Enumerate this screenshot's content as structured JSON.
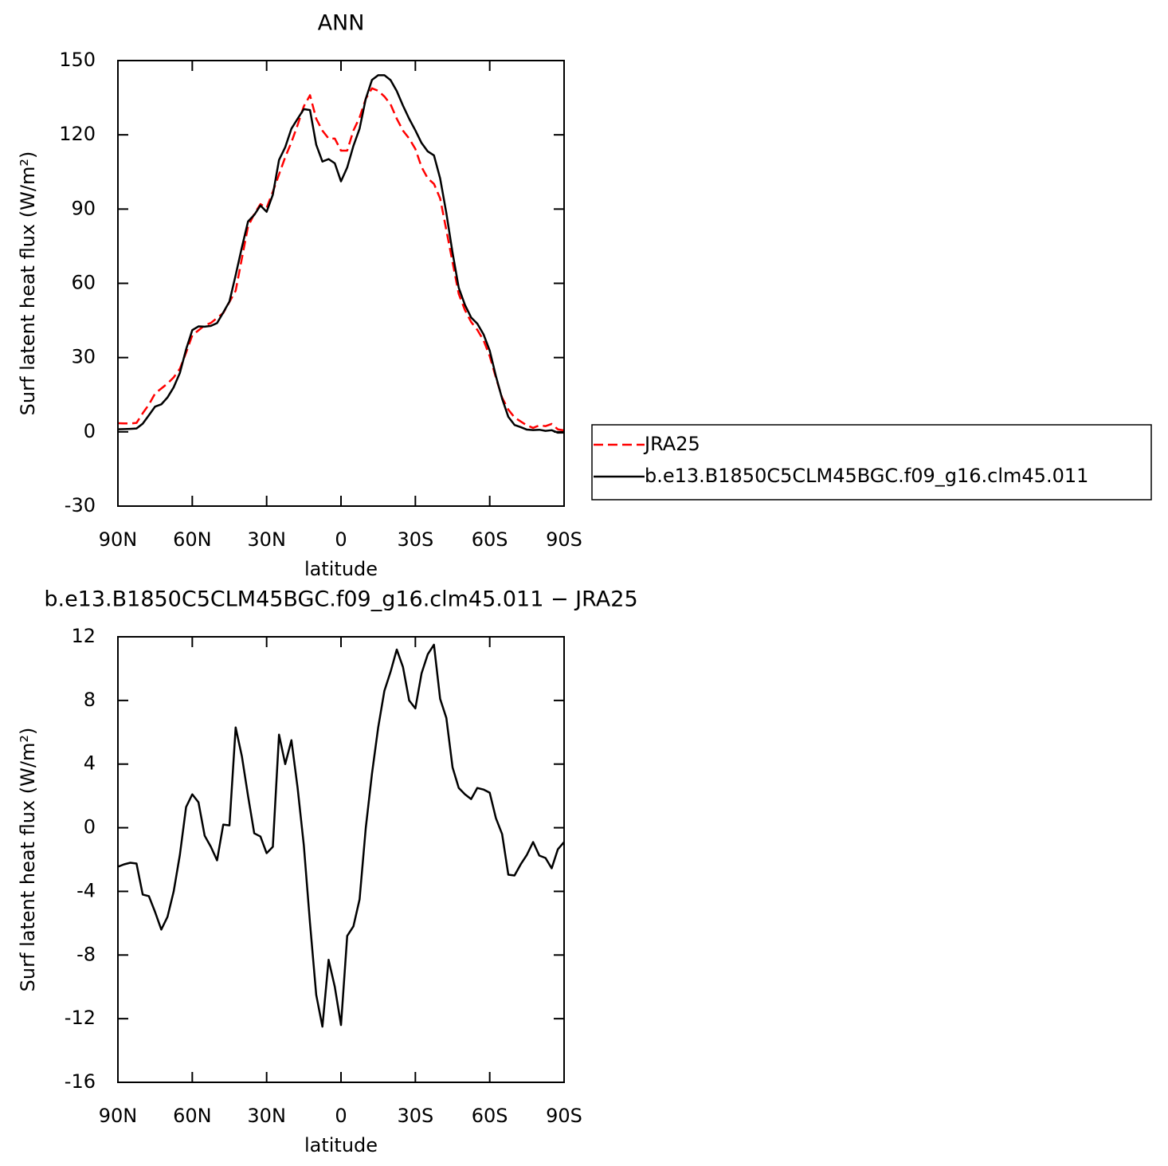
{
  "chart_data": [
    {
      "type": "line",
      "title": "ANN",
      "xlabel": "latitude",
      "ylabel": "Surf latent heat flux (W/m²)",
      "x": [
        90,
        87.5,
        85,
        82.5,
        80,
        77.5,
        75,
        72.5,
        70,
        67.5,
        65,
        62.5,
        60,
        57.5,
        55,
        52.5,
        50,
        47.5,
        45,
        42.5,
        40,
        37.5,
        35,
        32.5,
        30,
        27.5,
        25,
        22.5,
        20,
        17.5,
        15,
        12.5,
        10,
        7.5,
        5,
        2.5,
        0,
        -2.5,
        -5,
        -7.5,
        -10,
        -12.5,
        -15,
        -17.5,
        -20,
        -22.5,
        -25,
        -27.5,
        -30,
        -32.5,
        -35,
        -37.5,
        -40,
        -42.5,
        -45,
        -47.5,
        -50,
        -52.5,
        -55,
        -57.5,
        -60,
        -62.5,
        -65,
        -67.5,
        -70,
        -72.5,
        -75,
        -77.5,
        -80,
        -82.5,
        -85,
        -87.5,
        -90
      ],
      "series": [
        {
          "name": "JRA25",
          "color": "#ff0000",
          "linestyle": "dashed",
          "values": [
            3.5,
            3.4,
            3.4,
            3.6,
            7.5,
            11,
            15.5,
            17.5,
            19.5,
            22,
            25.5,
            32,
            39,
            41,
            43,
            44,
            46,
            48,
            52.5,
            57,
            70,
            83,
            88,
            92,
            90.5,
            97,
            104,
            111,
            117,
            124,
            131.5,
            136,
            126.5,
            121.7,
            118.5,
            118.5,
            113.6,
            113.6,
            121.7,
            127,
            134.6,
            138.8,
            137.8,
            135.5,
            132.3,
            126.5,
            121.7,
            118.5,
            114.3,
            107,
            102.4,
            100.2,
            94.3,
            81.5,
            68.6,
            55.7,
            49.2,
            44.4,
            41.2,
            37,
            30.6,
            21.9,
            13.8,
            9,
            5.8,
            4.2,
            2.6,
            1.6,
            2.6,
            2.3,
            3.2,
            1,
            0.6
          ]
        },
        {
          "name": "b.e13.B1850C5CLM45BGC.f09_g16.clm45.011",
          "color": "#000000",
          "linestyle": "solid",
          "values": [
            1.05,
            1.1,
            1.2,
            1.35,
            3.3,
            6.7,
            10.2,
            11.1,
            13.9,
            18,
            23.8,
            33.3,
            41.1,
            42.6,
            42.5,
            42.8,
            43.95,
            48.2,
            52.65,
            63.3,
            74.5,
            85,
            87.65,
            91.45,
            88.9,
            95.8,
            109.85,
            115,
            122.5,
            126.5,
            130.4,
            130,
            116,
            109.2,
            110.2,
            108.5,
            101.2,
            106.8,
            115.5,
            122.5,
            134.6,
            142.2,
            144.1,
            144.1,
            142.1,
            137.7,
            131.8,
            126.5,
            121.8,
            116.7,
            113.3,
            111.7,
            102.4,
            88.4,
            72.4,
            58.2,
            51.3,
            46.2,
            43.7,
            39.4,
            32.8,
            22.5,
            13.4,
            6.05,
            2.8,
            1.9,
            0.9,
            0.7,
            0.85,
            0.4,
            0.65,
            -0.35,
            -0.3
          ]
        }
      ],
      "xlim": [
        90,
        -90
      ],
      "xticks": [
        {
          "value": 90,
          "label": "90N"
        },
        {
          "value": 60,
          "label": "60N"
        },
        {
          "value": 30,
          "label": "30N"
        },
        0,
        {
          "value": -30,
          "label": "30S"
        },
        {
          "value": -60,
          "label": "60S"
        },
        {
          "value": -90,
          "label": "90S"
        }
      ],
      "ylim": [
        -30,
        150
      ],
      "yticks": [
        -30,
        0,
        30,
        60,
        90,
        120,
        150
      ],
      "legend": "right"
    },
    {
      "type": "line",
      "title": "b.e13.B1850C5CLM45BGC.f09_g16.clm45.011 − JRA25",
      "xlabel": "latitude",
      "ylabel": "Surf latent heat flux (W/m²)",
      "x": [
        90,
        87.5,
        85,
        82.5,
        80,
        77.5,
        75,
        72.5,
        70,
        67.5,
        65,
        62.5,
        60,
        57.5,
        55,
        52.5,
        50,
        47.5,
        45,
        42.5,
        40,
        37.5,
        35,
        32.5,
        30,
        27.5,
        25,
        22.5,
        20,
        17.5,
        15,
        12.5,
        10,
        7.5,
        5,
        2.5,
        0,
        -2.5,
        -5,
        -7.5,
        -10,
        -12.5,
        -15,
        -17.5,
        -20,
        -22.5,
        -25,
        -27.5,
        -30,
        -32.5,
        -35,
        -37.5,
        -40,
        -42.5,
        -45,
        -47.5,
        -50,
        -52.5,
        -55,
        -57.5,
        -60,
        -62.5,
        -65,
        -67.5,
        -70,
        -72.5,
        -75,
        -77.5,
        -80,
        -82.5,
        -85,
        -87.5,
        -90
      ],
      "series": [
        {
          "color": "#000000",
          "linestyle": "solid",
          "values": [
            -2.45,
            -2.3,
            -2.2,
            -2.25,
            -4.2,
            -4.3,
            -5.3,
            -6.4,
            -5.6,
            -4,
            -1.7,
            1.3,
            2.1,
            1.6,
            -0.5,
            -1.2,
            -2.05,
            0.2,
            0.15,
            6.3,
            4.5,
            2,
            -0.35,
            -0.55,
            -1.6,
            -1.2,
            5.85,
            4,
            5.5,
            2.5,
            -1.1,
            -6,
            -10.5,
            -12.5,
            -8.3,
            -10,
            -12.4,
            -6.8,
            -6.2,
            -4.5,
            0,
            3.4,
            6.3,
            8.6,
            9.8,
            11.2,
            10.1,
            8,
            7.5,
            9.7,
            10.9,
            11.5,
            8.1,
            6.9,
            3.8,
            2.5,
            2.1,
            1.8,
            2.5,
            2.4,
            2.2,
            0.6,
            -0.4,
            -2.95,
            -3,
            -2.3,
            -1.7,
            -0.9,
            -1.75,
            -1.9,
            -2.55,
            -1.35,
            -0.9
          ]
        }
      ],
      "xlim": [
        90,
        -90
      ],
      "xticks": [
        {
          "value": 90,
          "label": "90N"
        },
        {
          "value": 60,
          "label": "60N"
        },
        {
          "value": 30,
          "label": "30N"
        },
        0,
        {
          "value": -30,
          "label": "30S"
        },
        {
          "value": -60,
          "label": "60S"
        },
        {
          "value": -90,
          "label": "90S"
        }
      ],
      "ylim": [
        -16,
        12
      ],
      "yticks": [
        -16,
        -12,
        -8,
        -4,
        0,
        4,
        8,
        12
      ]
    }
  ]
}
